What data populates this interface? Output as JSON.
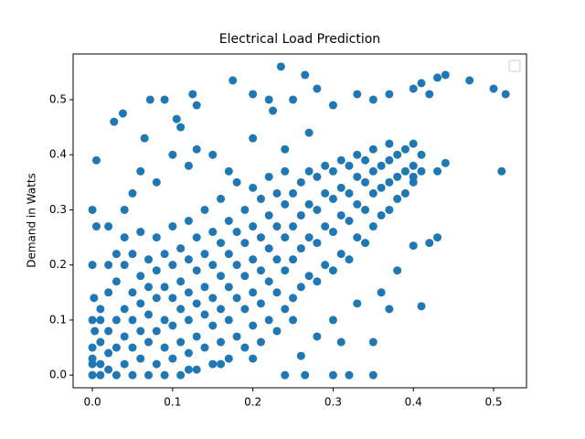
{
  "chart_data": {
    "type": "scatter",
    "title": "Electrical Load Prediction",
    "y_label": "Demand in Watts",
    "color": "#1f77b4",
    "legend": "upper right",
    "xlim": [
      -0.024,
      0.541
    ],
    "ylim": [
      -0.023,
      0.583
    ],
    "xticks": [
      {
        "value": 0,
        "label": "0.0"
      },
      0.1,
      0.2,
      0.3,
      0.4,
      0.5
    ],
    "yticks": [
      {
        "value": 0,
        "label": "0.0"
      },
      0.1,
      0.2,
      0.3,
      0.4,
      0.5
    ],
    "x": [
      0,
      0,
      0,
      0,
      0.01,
      0.01,
      0.01,
      0.01,
      0.01,
      0.02,
      0.02,
      0.02,
      0.02,
      0.02,
      0.03,
      0.03,
      0.03,
      0.03,
      0.03,
      0.04,
      0.04,
      0.04,
      0.04,
      0.04,
      0.05,
      0.05,
      0.05,
      0.05,
      0.05,
      0.06,
      0.06,
      0.06,
      0.06,
      0.06,
      0.07,
      0.07,
      0.07,
      0.07,
      0.07,
      0.08,
      0.08,
      0.08,
      0.08,
      0.08,
      0.09,
      0.09,
      0.09,
      0.09,
      0.09,
      0.1,
      0.1,
      0.1,
      0.1,
      0.1,
      0.11,
      0.11,
      0.11,
      0.11,
      0.11,
      0.12,
      0.12,
      0.12,
      0.12,
      0.12,
      0.13,
      0.13,
      0.13,
      0.13,
      0.13,
      0.14,
      0.14,
      0.14,
      0.14,
      0.14,
      0.15,
      0.15,
      0.15,
      0.15,
      0.15,
      0.16,
      0.16,
      0.16,
      0.16,
      0.16,
      0.17,
      0.17,
      0.17,
      0.17,
      0.17,
      0.18,
      0.18,
      0.18,
      0.18,
      0.18,
      0.19,
      0.19,
      0.19,
      0.19,
      0.19,
      0.2,
      0.2,
      0.2,
      0.2,
      0.2,
      0.21,
      0.21,
      0.21,
      0.21,
      0.21,
      0.22,
      0.22,
      0.22,
      0.22,
      0.22,
      0.23,
      0.23,
      0.23,
      0.23,
      0.23,
      0.24,
      0.24,
      0.24,
      0.24,
      0.24,
      0.25,
      0.25,
      0.25,
      0.25,
      0.26,
      0.26,
      0.26,
      0.26,
      0.27,
      0.27,
      0.27,
      0.27,
      0.28,
      0.28,
      0.28,
      0.28,
      0.29,
      0.29,
      0.29,
      0.29,
      0.3,
      0.3,
      0.3,
      0.3,
      0.31,
      0.31,
      0.31,
      0.31,
      0.32,
      0.32,
      0.32,
      0.32,
      0.33,
      0.33,
      0.33,
      0.33,
      0.34,
      0.34,
      0.34,
      0.34,
      0.35,
      0.35,
      0.35,
      0.35,
      0.36,
      0.36,
      0.36,
      0.37,
      0.37,
      0.37,
      0.37,
      0.38,
      0.38,
      0.38,
      0.39,
      0.39,
      0.39,
      0.4,
      0.4,
      0.4,
      0.41,
      0.41,
      0.005,
      0.027,
      0.038,
      0.065,
      0.072,
      0.09,
      0.105,
      0.11,
      0.125,
      0.13,
      0.175,
      0.2,
      0.235,
      0.265,
      0.22,
      0.25,
      0.28,
      0.3,
      0.33,
      0.35,
      0.37,
      0.4,
      0.41,
      0.42,
      0.43,
      0.44,
      0.47,
      0.5,
      0.515,
      0.51,
      0.44,
      0.43,
      0.4,
      0.41,
      0.43,
      0.42,
      0.4,
      0.35,
      0.32,
      0.35,
      0.3,
      0.265,
      0.24,
      0.36,
      0.38,
      0.37,
      0.33,
      0.28,
      0.26,
      0.31,
      0.3,
      0.25,
      0.2,
      0.16,
      0.12,
      0,
      0.005,
      0,
      0.002,
      0,
      0.003,
      0.02,
      0.04,
      0.05,
      0.06,
      0.08,
      0.1,
      0.12,
      0.13,
      0.15,
      0.17,
      0.2,
      0.225,
      0.27,
      0.24
    ],
    "values": [
      0,
      0.02,
      0.05,
      0.03,
      0,
      0.06,
      0.1,
      0.02,
      0.12,
      0.01,
      0.04,
      0.08,
      0.15,
      0.2,
      0,
      0.05,
      0.1,
      0.17,
      0.22,
      0.02,
      0.07,
      0.12,
      0.2,
      0.25,
      0,
      0.05,
      0.1,
      0.15,
      0.22,
      0.03,
      0.08,
      0.13,
      0.18,
      0.26,
      0,
      0.06,
      0.11,
      0.16,
      0.21,
      0.02,
      0.08,
      0.14,
      0.19,
      0.25,
      0,
      0.05,
      0.1,
      0.16,
      0.22,
      0.03,
      0.09,
      0.14,
      0.2,
      0.27,
      0,
      0.06,
      0.12,
      0.17,
      0.23,
      0.04,
      0.1,
      0.15,
      0.21,
      0.28,
      0.01,
      0.07,
      0.13,
      0.19,
      0.25,
      0.05,
      0.11,
      0.16,
      0.22,
      0.3,
      0.02,
      0.09,
      0.14,
      0.2,
      0.26,
      0.06,
      0.12,
      0.18,
      0.24,
      0.32,
      0.03,
      0.1,
      0.16,
      0.22,
      0.28,
      0.07,
      0.14,
      0.2,
      0.26,
      0.35,
      0.05,
      0.12,
      0.18,
      0.24,
      0.3,
      0.09,
      0.15,
      0.21,
      0.27,
      0.34,
      0.06,
      0.13,
      0.19,
      0.25,
      0.32,
      0.1,
      0.17,
      0.23,
      0.29,
      0.36,
      0.08,
      0.15,
      0.21,
      0.27,
      0.33,
      0.12,
      0.19,
      0.25,
      0.31,
      0.37,
      0.14,
      0.21,
      0.27,
      0.33,
      0.16,
      0.23,
      0.29,
      0.35,
      0.18,
      0.25,
      0.31,
      0.37,
      0.17,
      0.24,
      0.3,
      0.36,
      0.2,
      0.27,
      0.33,
      0.38,
      0.19,
      0.26,
      0.32,
      0.37,
      0.22,
      0.29,
      0.34,
      0.39,
      0.21,
      0.28,
      0.33,
      0.38,
      0.25,
      0.31,
      0.36,
      0.4,
      0.24,
      0.3,
      0.35,
      0.39,
      0.27,
      0.33,
      0.37,
      0.41,
      0.29,
      0.34,
      0.38,
      0.3,
      0.35,
      0.39,
      0.42,
      0.32,
      0.36,
      0.4,
      0.33,
      0.37,
      0.41,
      0.35,
      0.38,
      0.42,
      0.37,
      0.4,
      0.39,
      0.46,
      0.475,
      0.43,
      0.5,
      0.5,
      0.465,
      0.45,
      0.51,
      0.49,
      0.535,
      0.51,
      0.56,
      0.545,
      0.5,
      0.5,
      0.52,
      0.49,
      0.51,
      0.5,
      0.51,
      0.52,
      0.53,
      0.51,
      0.54,
      0.545,
      0.535,
      0.52,
      0.51,
      0.37,
      0.385,
      0.37,
      0.36,
      0.125,
      0.25,
      0.24,
      0.235,
      0,
      0,
      0.06,
      0,
      0,
      0,
      0.15,
      0.19,
      0.12,
      0.13,
      0.07,
      0.035,
      0.06,
      0.1,
      0.1,
      0.03,
      0.02,
      0.01,
      0.3,
      0.27,
      0.2,
      0.14,
      0.1,
      0.08,
      0.27,
      0.3,
      0.33,
      0.37,
      0.35,
      0.4,
      0.38,
      0.41,
      0.4,
      0.37,
      0.43,
      0.48,
      0.44,
      0.41
    ]
  }
}
